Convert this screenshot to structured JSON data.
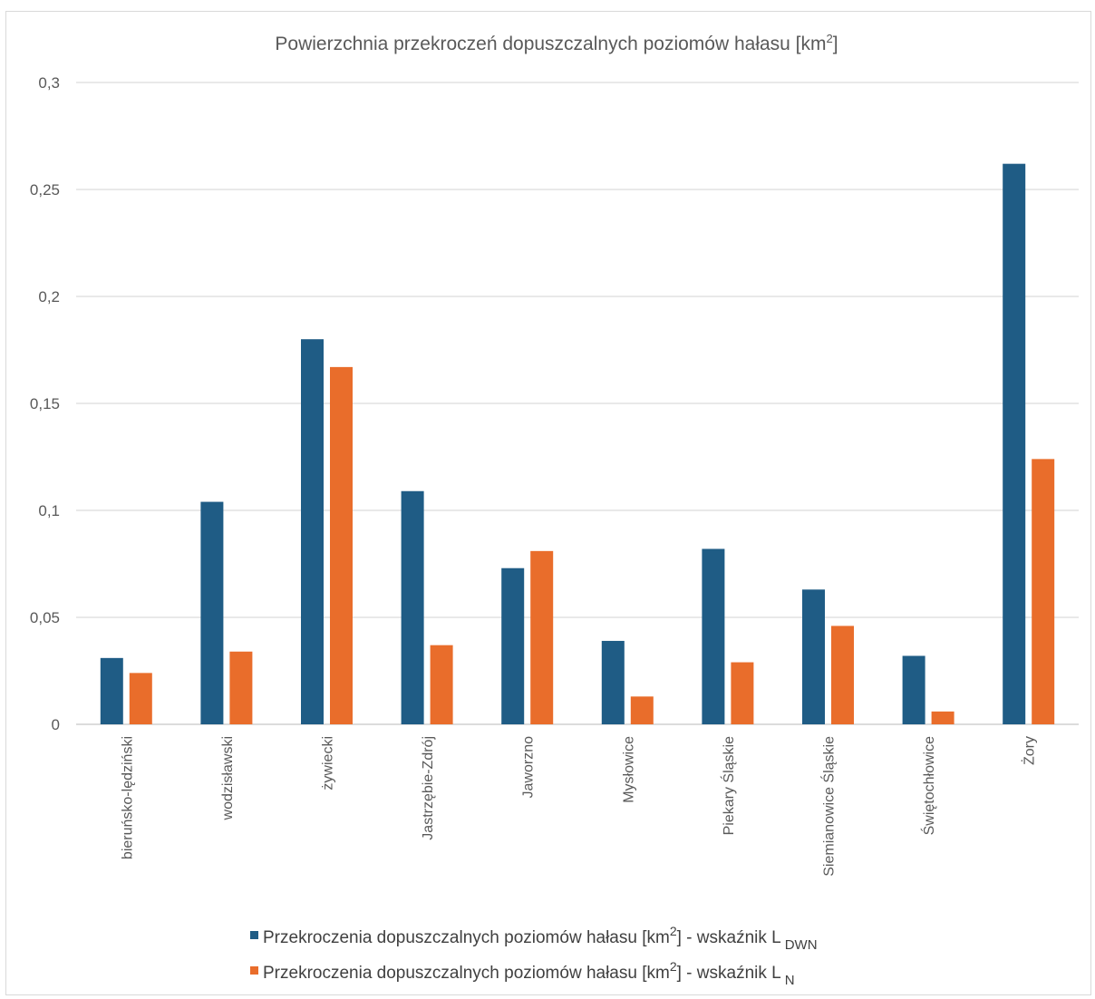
{
  "chart_data": {
    "type": "bar",
    "title": "Powierzchnia przekroczeń dopuszczalnych poziomów hałasu [km",
    "title_sup": "2",
    "title_end": "]",
    "categories": [
      "bieruńsko-lędziński",
      "wodzisławski",
      "żywiecki",
      "Jastrzębie-Zdrój",
      "Jaworzno",
      "Mysłowice",
      "Piekary Śląskie",
      "Siemianowice Śląskie",
      "Świętochłowice",
      "Żory"
    ],
    "series": [
      {
        "legend_pre": "Przekroczenia dopuszczalnych poziomów hałasu [km",
        "legend_sup": "2",
        "legend_post": "] - wskaźnik L",
        "legend_sub": "DWN",
        "color": "#1f5c85",
        "values": [
          0.031,
          0.104,
          0.18,
          0.109,
          0.073,
          0.039,
          0.082,
          0.063,
          0.032,
          0.262
        ]
      },
      {
        "legend_pre": "Przekroczenia dopuszczalnych poziomów hałasu [km",
        "legend_sup": "2",
        "legend_post": "] - wskaźnik L",
        "legend_sub": "N",
        "color": "#e96d2b",
        "values": [
          0.024,
          0.034,
          0.167,
          0.037,
          0.081,
          0.013,
          0.029,
          0.046,
          0.006,
          0.124
        ]
      }
    ],
    "y_ticks": [
      "0",
      "0,05",
      "0,1",
      "0,15",
      "0,2",
      "0,25",
      "0,3"
    ],
    "ylim": [
      0,
      0.3
    ],
    "grid": true,
    "legend_position": "bottom"
  }
}
